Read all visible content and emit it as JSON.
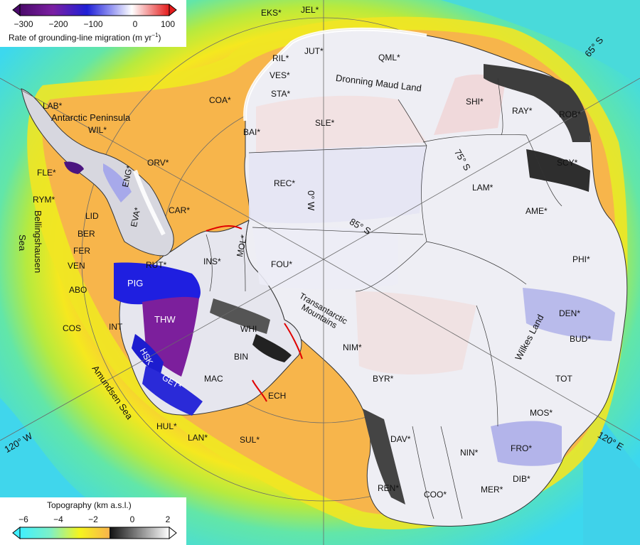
{
  "legend_top": {
    "title_main": "Rate of grounding-line migration (m yr",
    "title_sup": "−1",
    "title_close": ")",
    "ticks": [
      "−300",
      "−200",
      "−100",
      "0",
      "100"
    ],
    "colors": {
      "dark": "#4b0a6b",
      "purple": "#7b1fa2",
      "blue": "#1f1fd6",
      "light": "#ffffff",
      "red": "#e41b1b"
    }
  },
  "legend_bottom": {
    "title": "Topography (km a.s.l.)",
    "ticks": [
      "−6",
      "−4",
      "−2",
      "0",
      "2"
    ],
    "colors": {
      "cyan": "#3ff0ff",
      "yellow": "#f5f51e",
      "orange": "#f9b44c",
      "black": "#111111",
      "white": "#ffffff"
    }
  },
  "regions": {
    "EKS": "EKS*",
    "JEL": "JEL*",
    "JUT": "JUT*",
    "QML": "QML*",
    "RIL": "RIL*",
    "VES": "VES*",
    "STA": "STA*",
    "COA": "COA*",
    "SHI": "SHI*",
    "RAY": "RAY*",
    "ROB": "ROB*",
    "BAI": "BAI*",
    "SLE": "SLE*",
    "SCY": "SCY*",
    "LAB": "LAB*",
    "WIL": "WIL*",
    "FLE": "FLE*",
    "ORV": "ORV*",
    "REC": "REC*",
    "LAM": "LAM*",
    "RYM": "RYM*",
    "ENG": "ENG*",
    "LID": "LID",
    "CAR": "CAR*",
    "AME": "AME*",
    "BER": "BER",
    "EVA": "EVA*",
    "FER": "FER",
    "MOL": "MOL*",
    "VEN": "VEN",
    "RUT": "RUT*",
    "INS": "INS*",
    "FOU": "FOU*",
    "PHI": "PHI*",
    "PIG": "PIG",
    "ABO": "ABO",
    "DEN": "DEN*",
    "THW": "THW",
    "COS": "COS",
    "INT": "INT",
    "WHI": "WHI",
    "NIM": "NIM*",
    "BUD": "BUD*",
    "HSK": "HSK",
    "BIN": "BIN",
    "TOT": "TOT",
    "GET": "GET*",
    "MAC": "MAC",
    "BYR": "BYR*",
    "ECH": "ECH",
    "MOS": "MOS*",
    "HUL": "HUL*",
    "LAN": "LAN*",
    "SUL": "SUL*",
    "DAV": "DAV*",
    "FRO": "FRO*",
    "NIN": "NIN*",
    "DIB": "DIB*",
    "REN": "REN*",
    "COO": "COO*",
    "MER": "MER*"
  },
  "place_names": {
    "dml": "Dronning Maud Land",
    "ap": "Antarctic Peninsula",
    "bell1": "Bellingshausen",
    "bell2": "Sea",
    "tam1": "Transantarctic",
    "tam2": "Mountains",
    "amundsen": "Amundsen Sea",
    "wilkes": "Wilkes Land"
  },
  "graticule": {
    "lat65": "65° S",
    "lat75": "75° S",
    "lat85": "85° S",
    "lon0": "0° W",
    "lon120w": "120° W",
    "lon120e": "120° E"
  }
}
